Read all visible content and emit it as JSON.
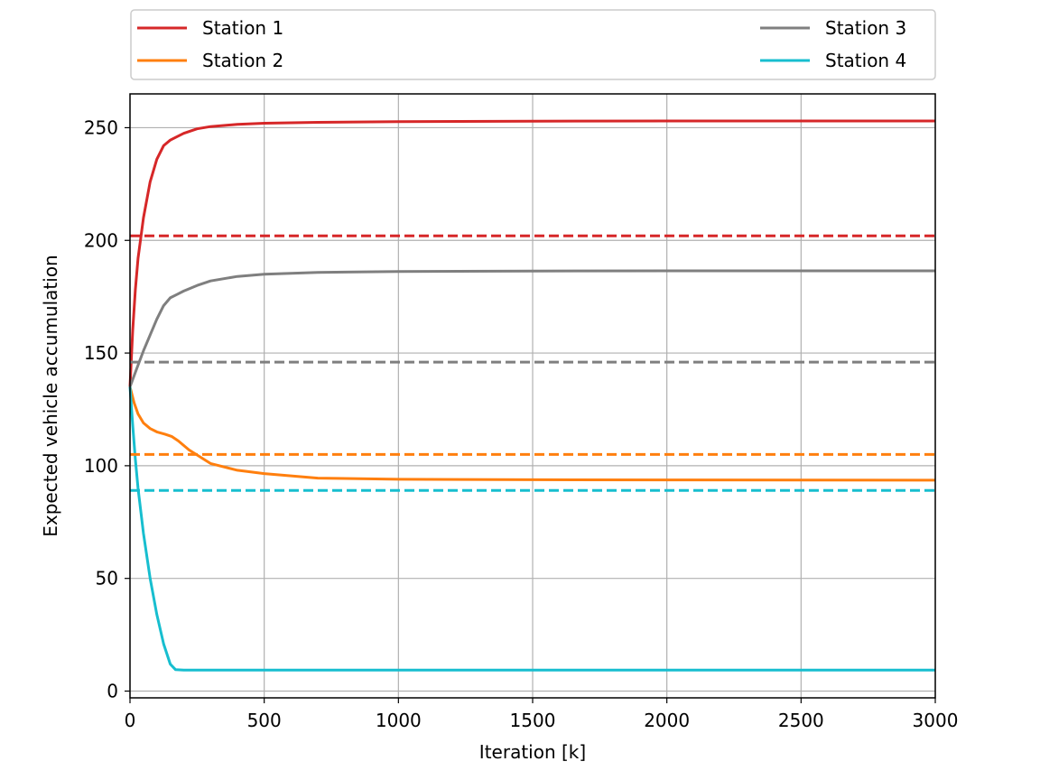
{
  "chart_data": {
    "type": "line",
    "title": "",
    "xlabel": "Iteration [k]",
    "ylabel": "Expected vehicle accumulation",
    "xlim": [
      0,
      3000
    ],
    "ylim": [
      -3,
      265
    ],
    "xticks": [
      0,
      500,
      1000,
      1500,
      2000,
      2500,
      3000
    ],
    "yticks": [
      0,
      50,
      100,
      150,
      200,
      250
    ],
    "grid": true,
    "legend_placement": "above plot, two columns",
    "series": [
      {
        "name": "Station 1",
        "color": "#d62728",
        "style": "solid",
        "x": [
          0,
          10,
          20,
          30,
          50,
          75,
          100,
          125,
          150,
          175,
          200,
          250,
          300,
          400,
          500,
          700,
          1000,
          1500,
          2000,
          3000
        ],
        "y": [
          135,
          160,
          178,
          192,
          210,
          226,
          236,
          242,
          244.5,
          246,
          247.5,
          249.5,
          250.5,
          251.5,
          252,
          252.4,
          252.7,
          252.9,
          253,
          253
        ]
      },
      {
        "name": "Station 2",
        "color": "#ff7f0e",
        "style": "solid",
        "x": [
          0,
          15,
          30,
          50,
          75,
          100,
          130,
          155,
          180,
          220,
          260,
          300,
          400,
          500,
          700,
          1000,
          1500,
          2000,
          3000
        ],
        "y": [
          135,
          128,
          123,
          119,
          116.5,
          115,
          114,
          113,
          111,
          107,
          104,
          101,
          98,
          96.5,
          94.5,
          94,
          93.8,
          93.7,
          93.6
        ]
      },
      {
        "name": "Station 3",
        "color": "#7f7f7f",
        "style": "solid",
        "x": [
          0,
          25,
          50,
          75,
          100,
          125,
          150,
          175,
          200,
          250,
          300,
          400,
          500,
          700,
          1000,
          1500,
          2000,
          3000
        ],
        "y": [
          135,
          143,
          151,
          158,
          165,
          171,
          174.5,
          176,
          177.5,
          180,
          182,
          184,
          185,
          185.8,
          186.2,
          186.4,
          186.5,
          186.5
        ]
      },
      {
        "name": "Station 4",
        "color": "#17becf",
        "style": "solid",
        "x": [
          0,
          10,
          20,
          30,
          50,
          75,
          100,
          125,
          150,
          170,
          200,
          500,
          1000,
          2000,
          3000
        ],
        "y": [
          135,
          118,
          103,
          90,
          70,
          50,
          34,
          21,
          12,
          9.5,
          9.3,
          9.3,
          9.3,
          9.3,
          9.3
        ]
      },
      {
        "color": "#d62728",
        "style": "dashed",
        "x": [
          0,
          3000
        ],
        "y": [
          202,
          202
        ]
      },
      {
        "color": "#7f7f7f",
        "style": "dashed",
        "x": [
          0,
          3000
        ],
        "y": [
          146,
          146
        ]
      },
      {
        "color": "#ff7f0e",
        "style": "dashed",
        "x": [
          0,
          3000
        ],
        "y": [
          105,
          105
        ]
      },
      {
        "color": "#17becf",
        "style": "dashed",
        "x": [
          0,
          3000
        ],
        "y": [
          89,
          89
        ]
      }
    ]
  }
}
